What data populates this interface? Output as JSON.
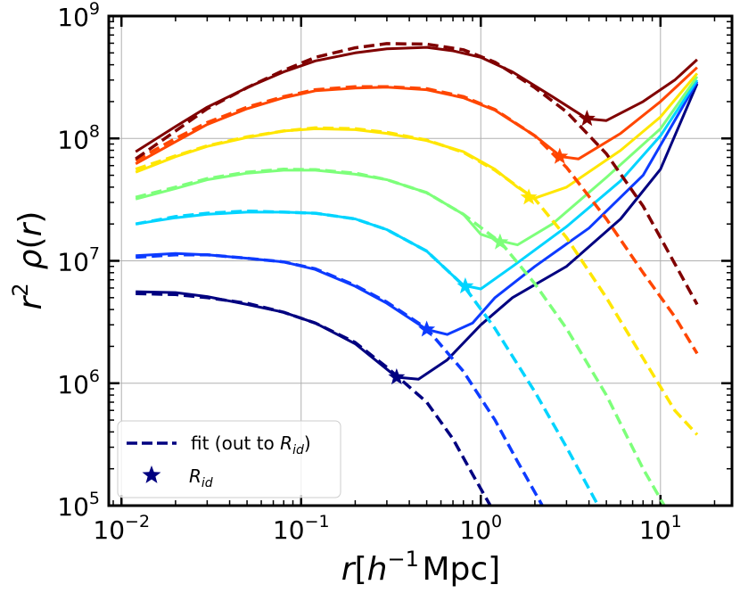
{
  "chart_data": {
    "type": "line",
    "title": "",
    "xlabel": "r[h^{-1}Mpc]",
    "ylabel": "r^2 ρ(r)",
    "xscale": "log",
    "yscale": "log",
    "xlim": [
      0.0085,
      25
    ],
    "ylim": [
      100000,
      1000000000
    ],
    "grid": true,
    "legend_position": "lower-left",
    "x_ticks": [
      {
        "value": 0.01,
        "base": "10",
        "exp": "−2"
      },
      {
        "value": 0.1,
        "base": "10",
        "exp": "−1"
      },
      {
        "value": 1,
        "base": "10",
        "exp": "0"
      },
      {
        "value": 10,
        "base": "10",
        "exp": "1"
      }
    ],
    "y_ticks": [
      {
        "value": 100000,
        "base": "10",
        "exp": "5"
      },
      {
        "value": 1000000,
        "base": "10",
        "exp": "6"
      },
      {
        "value": 10000000,
        "base": "10",
        "exp": "7"
      },
      {
        "value": 100000000,
        "base": "10",
        "exp": "8"
      },
      {
        "value": 1000000000,
        "base": "10",
        "exp": "9"
      }
    ],
    "legend": {
      "fit_label": "fit (out to ",
      "fit_sym": "R",
      "fit_sub": "id",
      "fit_end": ")",
      "rid_sym": "R",
      "rid_sub": "id",
      "color": "#000080"
    },
    "series": [
      {
        "color": "#000080",
        "measured": [
          [
            0.012,
            5600000.0
          ],
          [
            0.02,
            5500000.0
          ],
          [
            0.03,
            5100000.0
          ],
          [
            0.05,
            4400000.0
          ],
          [
            0.08,
            3800000.0
          ],
          [
            0.12,
            3100000.0
          ],
          [
            0.2,
            2100000.0
          ],
          [
            0.3,
            1300000.0
          ],
          [
            0.34,
            1120000.0
          ],
          [
            0.45,
            1080000.0
          ],
          [
            0.65,
            1550000.0
          ],
          [
            1.0,
            3000000.0
          ],
          [
            1.5,
            5000000.0
          ],
          [
            3,
            9000000.0
          ],
          [
            6,
            22000000.0
          ],
          [
            10,
            56000000.0
          ],
          [
            16,
            280000000.0
          ]
        ],
        "fit": [
          [
            0.012,
            5400000.0
          ],
          [
            0.02,
            5300000.0
          ],
          [
            0.03,
            5000000.0
          ],
          [
            0.05,
            4500000.0
          ],
          [
            0.08,
            3800000.0
          ],
          [
            0.12,
            3100000.0
          ],
          [
            0.2,
            2150000.0
          ],
          [
            0.3,
            1350000.0
          ],
          [
            0.5,
            700000.0
          ],
          [
            0.7,
            350000.0
          ],
          [
            0.9,
            180000.0
          ],
          [
            1.13,
            100000.0
          ]
        ],
        "rid": [
          0.34,
          1120000.0
        ]
      },
      {
        "color": "#0d3bff",
        "measured": [
          [
            0.012,
            11000000.0
          ],
          [
            0.02,
            11500000.0
          ],
          [
            0.03,
            11200000.0
          ],
          [
            0.05,
            10500000.0
          ],
          [
            0.08,
            9800000.0
          ],
          [
            0.12,
            8500000.0
          ],
          [
            0.2,
            6200000.0
          ],
          [
            0.3,
            4500000.0
          ],
          [
            0.5,
            2750000.0
          ],
          [
            0.65,
            2500000.0
          ],
          [
            0.9,
            3100000.0
          ],
          [
            1.2,
            5000000.0
          ],
          [
            2,
            9000000.0
          ],
          [
            4,
            18500000.0
          ],
          [
            8,
            50000000.0
          ],
          [
            16,
            290000000.0
          ]
        ],
        "fit": [
          [
            0.012,
            10700000.0
          ],
          [
            0.02,
            11200000.0
          ],
          [
            0.03,
            11200000.0
          ],
          [
            0.05,
            10500000.0
          ],
          [
            0.08,
            9800000.0
          ],
          [
            0.12,
            8600000.0
          ],
          [
            0.2,
            6300000.0
          ],
          [
            0.3,
            4600000.0
          ],
          [
            0.5,
            2800000.0
          ],
          [
            0.8,
            1250000.0
          ],
          [
            1.2,
            500000.0
          ],
          [
            1.6,
            230000.0
          ],
          [
            2.2,
            100000.0
          ]
        ],
        "rid": [
          0.5,
          2750000.0
        ]
      },
      {
        "color": "#00d4ff",
        "measured": [
          [
            0.012,
            20000000.0
          ],
          [
            0.02,
            22500000.0
          ],
          [
            0.03,
            24000000.0
          ],
          [
            0.05,
            25000000.0
          ],
          [
            0.08,
            25000000.0
          ],
          [
            0.12,
            24500000.0
          ],
          [
            0.2,
            22000000.0
          ],
          [
            0.3,
            18000000.0
          ],
          [
            0.5,
            12000000.0
          ],
          [
            0.8,
            6300000.0
          ],
          [
            1.0,
            5900000.0
          ],
          [
            1.5,
            9000000.0
          ],
          [
            3,
            19000000.0
          ],
          [
            6,
            45000000.0
          ],
          [
            10,
            105000000.0
          ],
          [
            16,
            300000000.0
          ]
        ],
        "fit": [
          [
            0.012,
            20000000.0
          ],
          [
            0.02,
            23000000.0
          ],
          [
            0.03,
            24500000.0
          ],
          [
            0.05,
            25500000.0
          ],
          [
            0.08,
            25000000.0
          ],
          [
            0.12,
            24500000.0
          ],
          [
            0.2,
            22000000.0
          ],
          [
            0.3,
            18000000.0
          ],
          [
            0.5,
            12000000.0
          ],
          [
            0.8,
            6300000.0
          ],
          [
            1.2,
            2800000.0
          ],
          [
            2,
            850000.0
          ],
          [
            3,
            300000.0
          ],
          [
            4.5,
            100000.0
          ]
        ],
        "rid": [
          0.82,
          6200000.0
        ]
      },
      {
        "color": "#7dff7a",
        "measured": [
          [
            0.012,
            32000000.0
          ],
          [
            0.02,
            39000000.0
          ],
          [
            0.03,
            46000000.0
          ],
          [
            0.05,
            52000000.0
          ],
          [
            0.08,
            55000000.0
          ],
          [
            0.12,
            55000000.0
          ],
          [
            0.2,
            51000000.0
          ],
          [
            0.3,
            46000000.0
          ],
          [
            0.5,
            36000000.0
          ],
          [
            0.8,
            24000000.0
          ],
          [
            1.0,
            16500000.0
          ],
          [
            1.3,
            14500000.0
          ],
          [
            1.6,
            13500000.0
          ],
          [
            2.5,
            20000000.0
          ],
          [
            5,
            48000000.0
          ],
          [
            10,
            120000000.0
          ],
          [
            16,
            320000000.0
          ]
        ],
        "fit": [
          [
            0.012,
            33000000.0
          ],
          [
            0.02,
            40000000.0
          ],
          [
            0.03,
            47000000.0
          ],
          [
            0.05,
            53000000.0
          ],
          [
            0.08,
            56000000.0
          ],
          [
            0.12,
            55500000.0
          ],
          [
            0.2,
            52000000.0
          ],
          [
            0.3,
            46000000.0
          ],
          [
            0.5,
            36000000.0
          ],
          [
            0.8,
            24000000.0
          ],
          [
            1.3,
            14000000.0
          ],
          [
            2,
            6500000.0
          ],
          [
            3,
            2800000.0
          ],
          [
            5,
            800000.0
          ],
          [
            8,
            200000.0
          ],
          [
            10.5,
            100000.0
          ]
        ],
        "rid": [
          1.28,
          14200000.0
        ]
      },
      {
        "color": "#ffe600",
        "measured": [
          [
            0.012,
            53000000.0
          ],
          [
            0.02,
            71000000.0
          ],
          [
            0.03,
            86000000.0
          ],
          [
            0.05,
            102000000.0
          ],
          [
            0.08,
            115000000.0
          ],
          [
            0.12,
            120000000.0
          ],
          [
            0.2,
            118000000.0
          ],
          [
            0.3,
            110000000.0
          ],
          [
            0.5,
            96000000.0
          ],
          [
            0.8,
            78000000.0
          ],
          [
            1.2,
            56000000.0
          ],
          [
            1.6,
            40000000.0
          ],
          [
            2.0,
            32500000.0
          ],
          [
            3,
            40000000.0
          ],
          [
            6,
            80000000.0
          ],
          [
            10,
            150000000.0
          ],
          [
            16,
            340000000.0
          ]
        ],
        "fit": [
          [
            0.012,
            56000000.0
          ],
          [
            0.02,
            72000000.0
          ],
          [
            0.03,
            87000000.0
          ],
          [
            0.05,
            103000000.0
          ],
          [
            0.08,
            115000000.0
          ],
          [
            0.12,
            122000000.0
          ],
          [
            0.2,
            120000000.0
          ],
          [
            0.3,
            112000000.0
          ],
          [
            0.5,
            97000000.0
          ],
          [
            0.8,
            77000000.0
          ],
          [
            1.2,
            55000000.0
          ],
          [
            2,
            32000000.0
          ],
          [
            3,
            15500000.0
          ],
          [
            5,
            5000000.0
          ],
          [
            8,
            1600000.0
          ],
          [
            12,
            600000.0
          ],
          [
            16,
            380000.0
          ]
        ],
        "rid": [
          1.85,
          33000000.0
        ]
      },
      {
        "color": "#ff4600",
        "measured": [
          [
            0.012,
            62000000.0
          ],
          [
            0.02,
            94000000.0
          ],
          [
            0.03,
            130000000.0
          ],
          [
            0.05,
            175000000.0
          ],
          [
            0.08,
            215000000.0
          ],
          [
            0.12,
            245000000.0
          ],
          [
            0.2,
            258000000.0
          ],
          [
            0.3,
            262000000.0
          ],
          [
            0.5,
            250000000.0
          ],
          [
            0.8,
            215000000.0
          ],
          [
            1.2,
            170000000.0
          ],
          [
            2,
            105000000.0
          ],
          [
            2.8,
            71000000.0
          ],
          [
            3.5,
            68000000.0
          ],
          [
            6,
            110000000.0
          ],
          [
            10,
            200000000.0
          ],
          [
            16,
            380000000.0
          ]
        ],
        "fit": [
          [
            0.012,
            66000000.0
          ],
          [
            0.02,
            100000000.0
          ],
          [
            0.03,
            135000000.0
          ],
          [
            0.05,
            180000000.0
          ],
          [
            0.08,
            220000000.0
          ],
          [
            0.12,
            250000000.0
          ],
          [
            0.2,
            265000000.0
          ],
          [
            0.3,
            265000000.0
          ],
          [
            0.5,
            255000000.0
          ],
          [
            0.8,
            220000000.0
          ],
          [
            1.2,
            172000000.0
          ],
          [
            2,
            105000000.0
          ],
          [
            3,
            58000000.0
          ],
          [
            5,
            22000000.0
          ],
          [
            8,
            8000000.0
          ],
          [
            12,
            3500000.0
          ],
          [
            16,
            1750000.0
          ]
        ],
        "rid": [
          2.75,
          71000000.0
        ]
      },
      {
        "color": "#800000",
        "measured": [
          [
            0.012,
            78000000.0
          ],
          [
            0.02,
            125000000.0
          ],
          [
            0.03,
            180000000.0
          ],
          [
            0.05,
            260000000.0
          ],
          [
            0.08,
            350000000.0
          ],
          [
            0.12,
            430000000.0
          ],
          [
            0.2,
            500000000.0
          ],
          [
            0.3,
            540000000.0
          ],
          [
            0.5,
            555000000.0
          ],
          [
            0.7,
            520000000.0
          ],
          [
            1.0,
            460000000.0
          ],
          [
            1.5,
            350000000.0
          ],
          [
            2.5,
            220000000.0
          ],
          [
            3.9,
            145000000.0
          ],
          [
            5,
            140000000.0
          ],
          [
            8,
            200000000.0
          ],
          [
            12,
            300000000.0
          ],
          [
            16,
            440000000.0
          ]
        ],
        "fit": [
          [
            0.012,
            68000000.0
          ],
          [
            0.02,
            115000000.0
          ],
          [
            0.03,
            175000000.0
          ],
          [
            0.05,
            260000000.0
          ],
          [
            0.08,
            360000000.0
          ],
          [
            0.12,
            460000000.0
          ],
          [
            0.2,
            550000000.0
          ],
          [
            0.3,
            595000000.0
          ],
          [
            0.5,
            590000000.0
          ],
          [
            0.8,
            530000000.0
          ],
          [
            1.2,
            420000000.0
          ],
          [
            2,
            260000000.0
          ],
          [
            3,
            165000000.0
          ],
          [
            5,
            75000000.0
          ],
          [
            8,
            28000000.0
          ],
          [
            12,
            9500000.0
          ],
          [
            16,
            4400000.0
          ]
        ],
        "rid": [
          3.9,
          145000000.0
        ]
      }
    ]
  }
}
